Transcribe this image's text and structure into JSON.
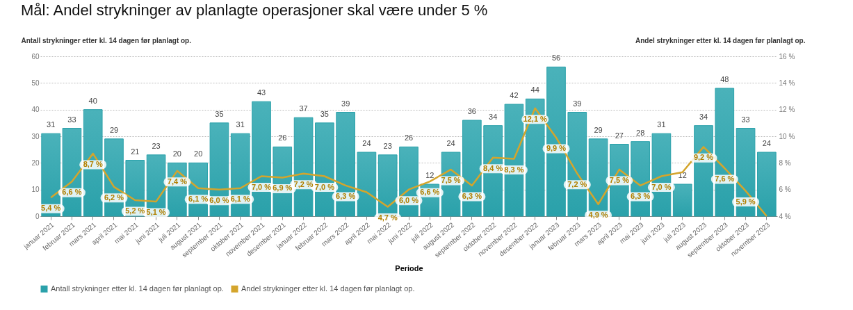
{
  "chart_data": {
    "type": "bar",
    "title": "Mål: Andel strykninger av planlagte operasjoner skal være under 5 %",
    "xlabel": "Periode",
    "ylabel": "Antall strykninger etter kl. 14 dagen før planlagt op.",
    "y2label": "Andel strykninger etter kl. 14 dagen før planlagt op.",
    "categories": [
      "januar 2021",
      "februar 2021",
      "mars 2021",
      "april 2021",
      "mai 2021",
      "juni 2021",
      "juli 2021",
      "august 2021",
      "september 2021",
      "oktober 2021",
      "november 2021",
      "desember 2021",
      "januar 2022",
      "februar 2022",
      "mars 2022",
      "april 2022",
      "mai 2022",
      "juni 2022",
      "juli 2022",
      "august 2022",
      "september 2022",
      "oktober 2022",
      "november 2022",
      "desember 2022",
      "januar 2023",
      "februar 2023",
      "mars 2023",
      "april 2023",
      "mai 2023",
      "juni 2023",
      "juli 2023",
      "august 2023",
      "september 2023",
      "oktober 2023",
      "november 2023"
    ],
    "series": [
      {
        "name": "Antall strykninger etter kl. 14 dagen før planlagt op.",
        "color": "#2aa1aa",
        "values": [
          31,
          33,
          40,
          29,
          21,
          23,
          20,
          20,
          35,
          31,
          43,
          26,
          37,
          35,
          39,
          24,
          23,
          26,
          12,
          24,
          36,
          34,
          42,
          44,
          56,
          39,
          29,
          27,
          28,
          31,
          12,
          34,
          48,
          33,
          24
        ],
        "value_labels": [
          "31",
          "33",
          "40",
          "29",
          "21",
          "23",
          "20",
          "20",
          "35",
          "31",
          "43",
          "26",
          "37",
          "35",
          "39",
          "24",
          "23",
          "26",
          "12",
          "24",
          "36",
          "34",
          "42",
          "44",
          "56",
          "39",
          "29",
          "27",
          "28",
          "31",
          "12",
          "34",
          "48",
          "33",
          "24"
        ]
      },
      {
        "name": "Andel strykninger etter kl. 14 dagen før planlagt op.",
        "type": "line",
        "axis": "y2",
        "color": "#d4a52c",
        "values": [
          5.4,
          6.6,
          8.7,
          6.2,
          5.2,
          5.1,
          7.4,
          6.1,
          6.0,
          6.1,
          7.0,
          6.9,
          7.2,
          7.0,
          6.3,
          5.8,
          4.7,
          6.0,
          6.6,
          7.5,
          6.3,
          8.4,
          8.3,
          12.1,
          9.9,
          7.2,
          4.9,
          7.5,
          6.3,
          7.0,
          7.3,
          9.2,
          7.6,
          5.9,
          4.0
        ],
        "value_labels": [
          "5,4 %",
          "6,6 %",
          "8,7 %",
          "6,2 %",
          "5,2 %",
          "5,1 %",
          "7,4 %",
          "6,1 %",
          "6,0 %",
          "6,1 %",
          "7,0 %",
          "6,9 %",
          "7,2 %",
          "7,0 %",
          "6,3 %",
          null,
          "4,7 %",
          "6,0 %",
          "6,6 %",
          "7,5 %",
          "6,3 %",
          "8,4 %",
          "8,3 %",
          "12,1 %",
          "9,9 %",
          "7,2 %",
          "4,9 %",
          "7,5 %",
          "6,3 %",
          "7,0 %",
          null,
          "9,2 %",
          "7,6 %",
          "5,9 %",
          null
        ]
      }
    ],
    "ylim": [
      0,
      60
    ],
    "yticks": [
      0,
      10,
      20,
      30,
      40,
      50,
      60
    ],
    "y2lim": [
      4,
      16
    ],
    "y2ticks": [
      {
        "value": 4,
        "label": "4 %"
      },
      {
        "value": 6,
        "label": "6 %"
      },
      {
        "value": 8,
        "label": "8 %"
      },
      {
        "value": 10,
        "label": "10 %"
      },
      {
        "value": 12,
        "label": "12 %"
      },
      {
        "value": 14,
        "label": "14 %"
      },
      {
        "value": 16,
        "label": "16 %"
      }
    ],
    "grid": "y",
    "legend": "bottom"
  }
}
